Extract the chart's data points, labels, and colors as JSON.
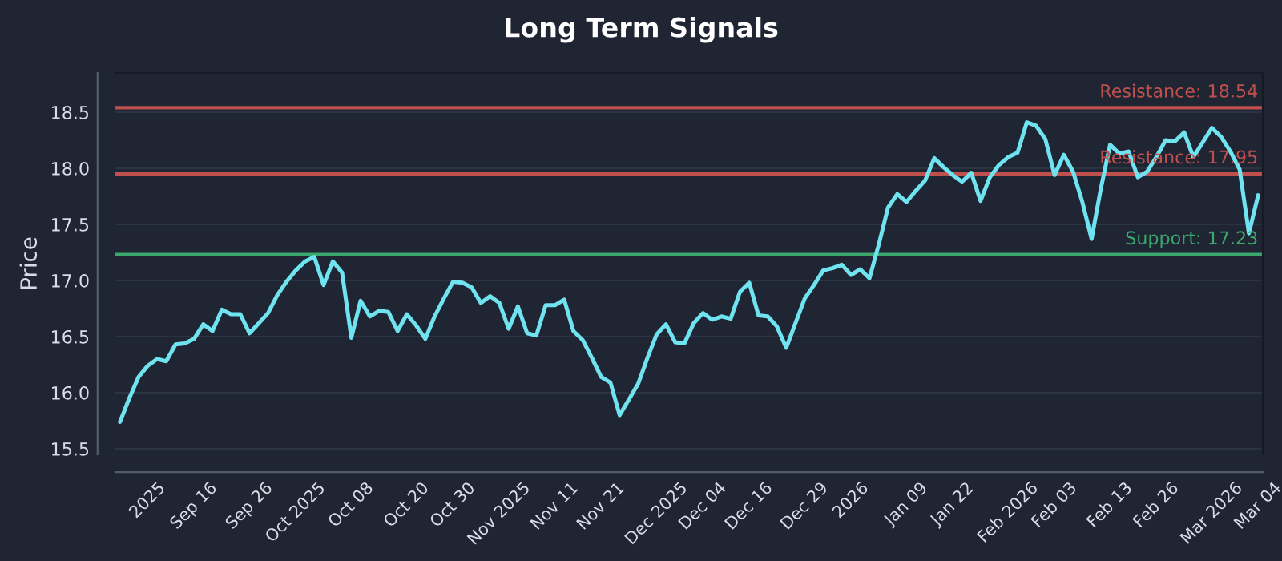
{
  "chart_data": {
    "type": "line",
    "title": "Long Term Signals",
    "ylabel": "Price",
    "categories": [
      null,
      null,
      null,
      "2025",
      null,
      null,
      null,
      null,
      "Sep 16",
      null,
      null,
      null,
      null,
      null,
      "Sep 26",
      null,
      null,
      null,
      null,
      "Oct 2025",
      null,
      null,
      null,
      null,
      null,
      "Oct 08",
      null,
      null,
      null,
      null,
      null,
      "Oct 20",
      null,
      null,
      null,
      null,
      "Oct 30",
      null,
      null,
      null,
      null,
      "Nov 2025",
      null,
      null,
      null,
      null,
      null,
      "Nov 11",
      null,
      null,
      null,
      null,
      "Nov 21",
      null,
      null,
      null,
      null,
      null,
      "Dec 2025",
      null,
      null,
      null,
      null,
      "Dec 04",
      null,
      null,
      null,
      null,
      "Dec 16",
      null,
      null,
      null,
      null,
      null,
      "Dec 29",
      null,
      null,
      null,
      null,
      "2026",
      null,
      null,
      null,
      null,
      null,
      "Jan 09",
      null,
      null,
      null,
      null,
      "Jan 22",
      null,
      null,
      null,
      null,
      null,
      "Feb 2026",
      null,
      null,
      null,
      null,
      "Feb 03",
      null,
      null,
      null,
      null,
      null,
      "Feb 13",
      null,
      null,
      null,
      null,
      "Feb 26",
      null,
      null,
      null,
      null,
      null,
      "Mar 2026",
      null,
      null,
      null,
      null,
      "Mar 04"
    ],
    "series": [
      {
        "color": "#6fe3ef",
        "values": [
          15.74,
          15.95,
          16.14,
          16.24,
          16.3,
          16.28,
          16.43,
          16.44,
          16.48,
          16.61,
          16.55,
          16.74,
          16.7,
          16.7,
          16.53,
          16.62,
          16.71,
          16.87,
          16.99,
          17.09,
          17.17,
          17.21,
          16.96,
          17.17,
          17.07,
          16.49,
          16.82,
          16.68,
          16.73,
          16.72,
          16.55,
          16.7,
          16.6,
          16.48,
          16.68,
          16.84,
          16.99,
          16.98,
          16.94,
          16.8,
          16.86,
          16.8,
          16.57,
          16.77,
          16.53,
          16.51,
          16.78,
          16.78,
          16.83,
          16.55,
          16.47,
          16.31,
          16.14,
          16.09,
          15.8,
          15.94,
          16.08,
          16.31,
          16.52,
          16.61,
          16.45,
          16.44,
          16.62,
          16.71,
          16.65,
          16.68,
          16.66,
          16.9,
          16.98,
          16.69,
          16.68,
          16.59,
          16.4,
          16.62,
          16.84,
          16.96,
          17.09,
          17.11,
          17.14,
          17.05,
          17.1,
          17.02,
          17.32,
          17.65,
          17.77,
          17.7,
          17.8,
          17.89,
          18.09,
          18.01,
          17.94,
          17.88,
          17.96,
          17.71,
          17.92,
          18.03,
          18.1,
          18.14,
          18.41,
          18.38,
          18.26,
          17.94,
          18.12,
          17.97,
          17.7,
          17.37,
          17.82,
          18.21,
          18.13,
          18.15,
          17.92,
          17.97,
          18.1,
          18.25,
          18.24,
          18.32,
          18.1,
          18.23,
          18.36,
          18.28,
          18.15,
          17.99,
          17.42,
          17.76
        ]
      }
    ],
    "ylim": [
      15.45,
      18.85
    ],
    "yticks": [
      {
        "value": 15.5,
        "label": "15.5"
      },
      {
        "value": 16.0,
        "label": "16.0"
      },
      {
        "value": 16.5,
        "label": "16.5"
      },
      {
        "value": 17.0,
        "label": "17.0"
      },
      {
        "value": 17.5,
        "label": "17.5"
      },
      {
        "value": 18.0,
        "label": "18.0"
      },
      {
        "value": 18.5,
        "label": "18.5"
      }
    ],
    "ref_lines": [
      {
        "axis": "y",
        "value": 18.54,
        "label": "Resistance: 18.54",
        "color": "#c0504d"
      },
      {
        "axis": "y",
        "value": 17.95,
        "label": "Resistance: 17.95",
        "color": "#c0504d"
      },
      {
        "axis": "y",
        "value": 17.23,
        "label": "Support: 17.23",
        "color": "#3aa76d"
      }
    ],
    "grid": "y",
    "legend": false,
    "marker": "none",
    "line_style": "solid"
  }
}
